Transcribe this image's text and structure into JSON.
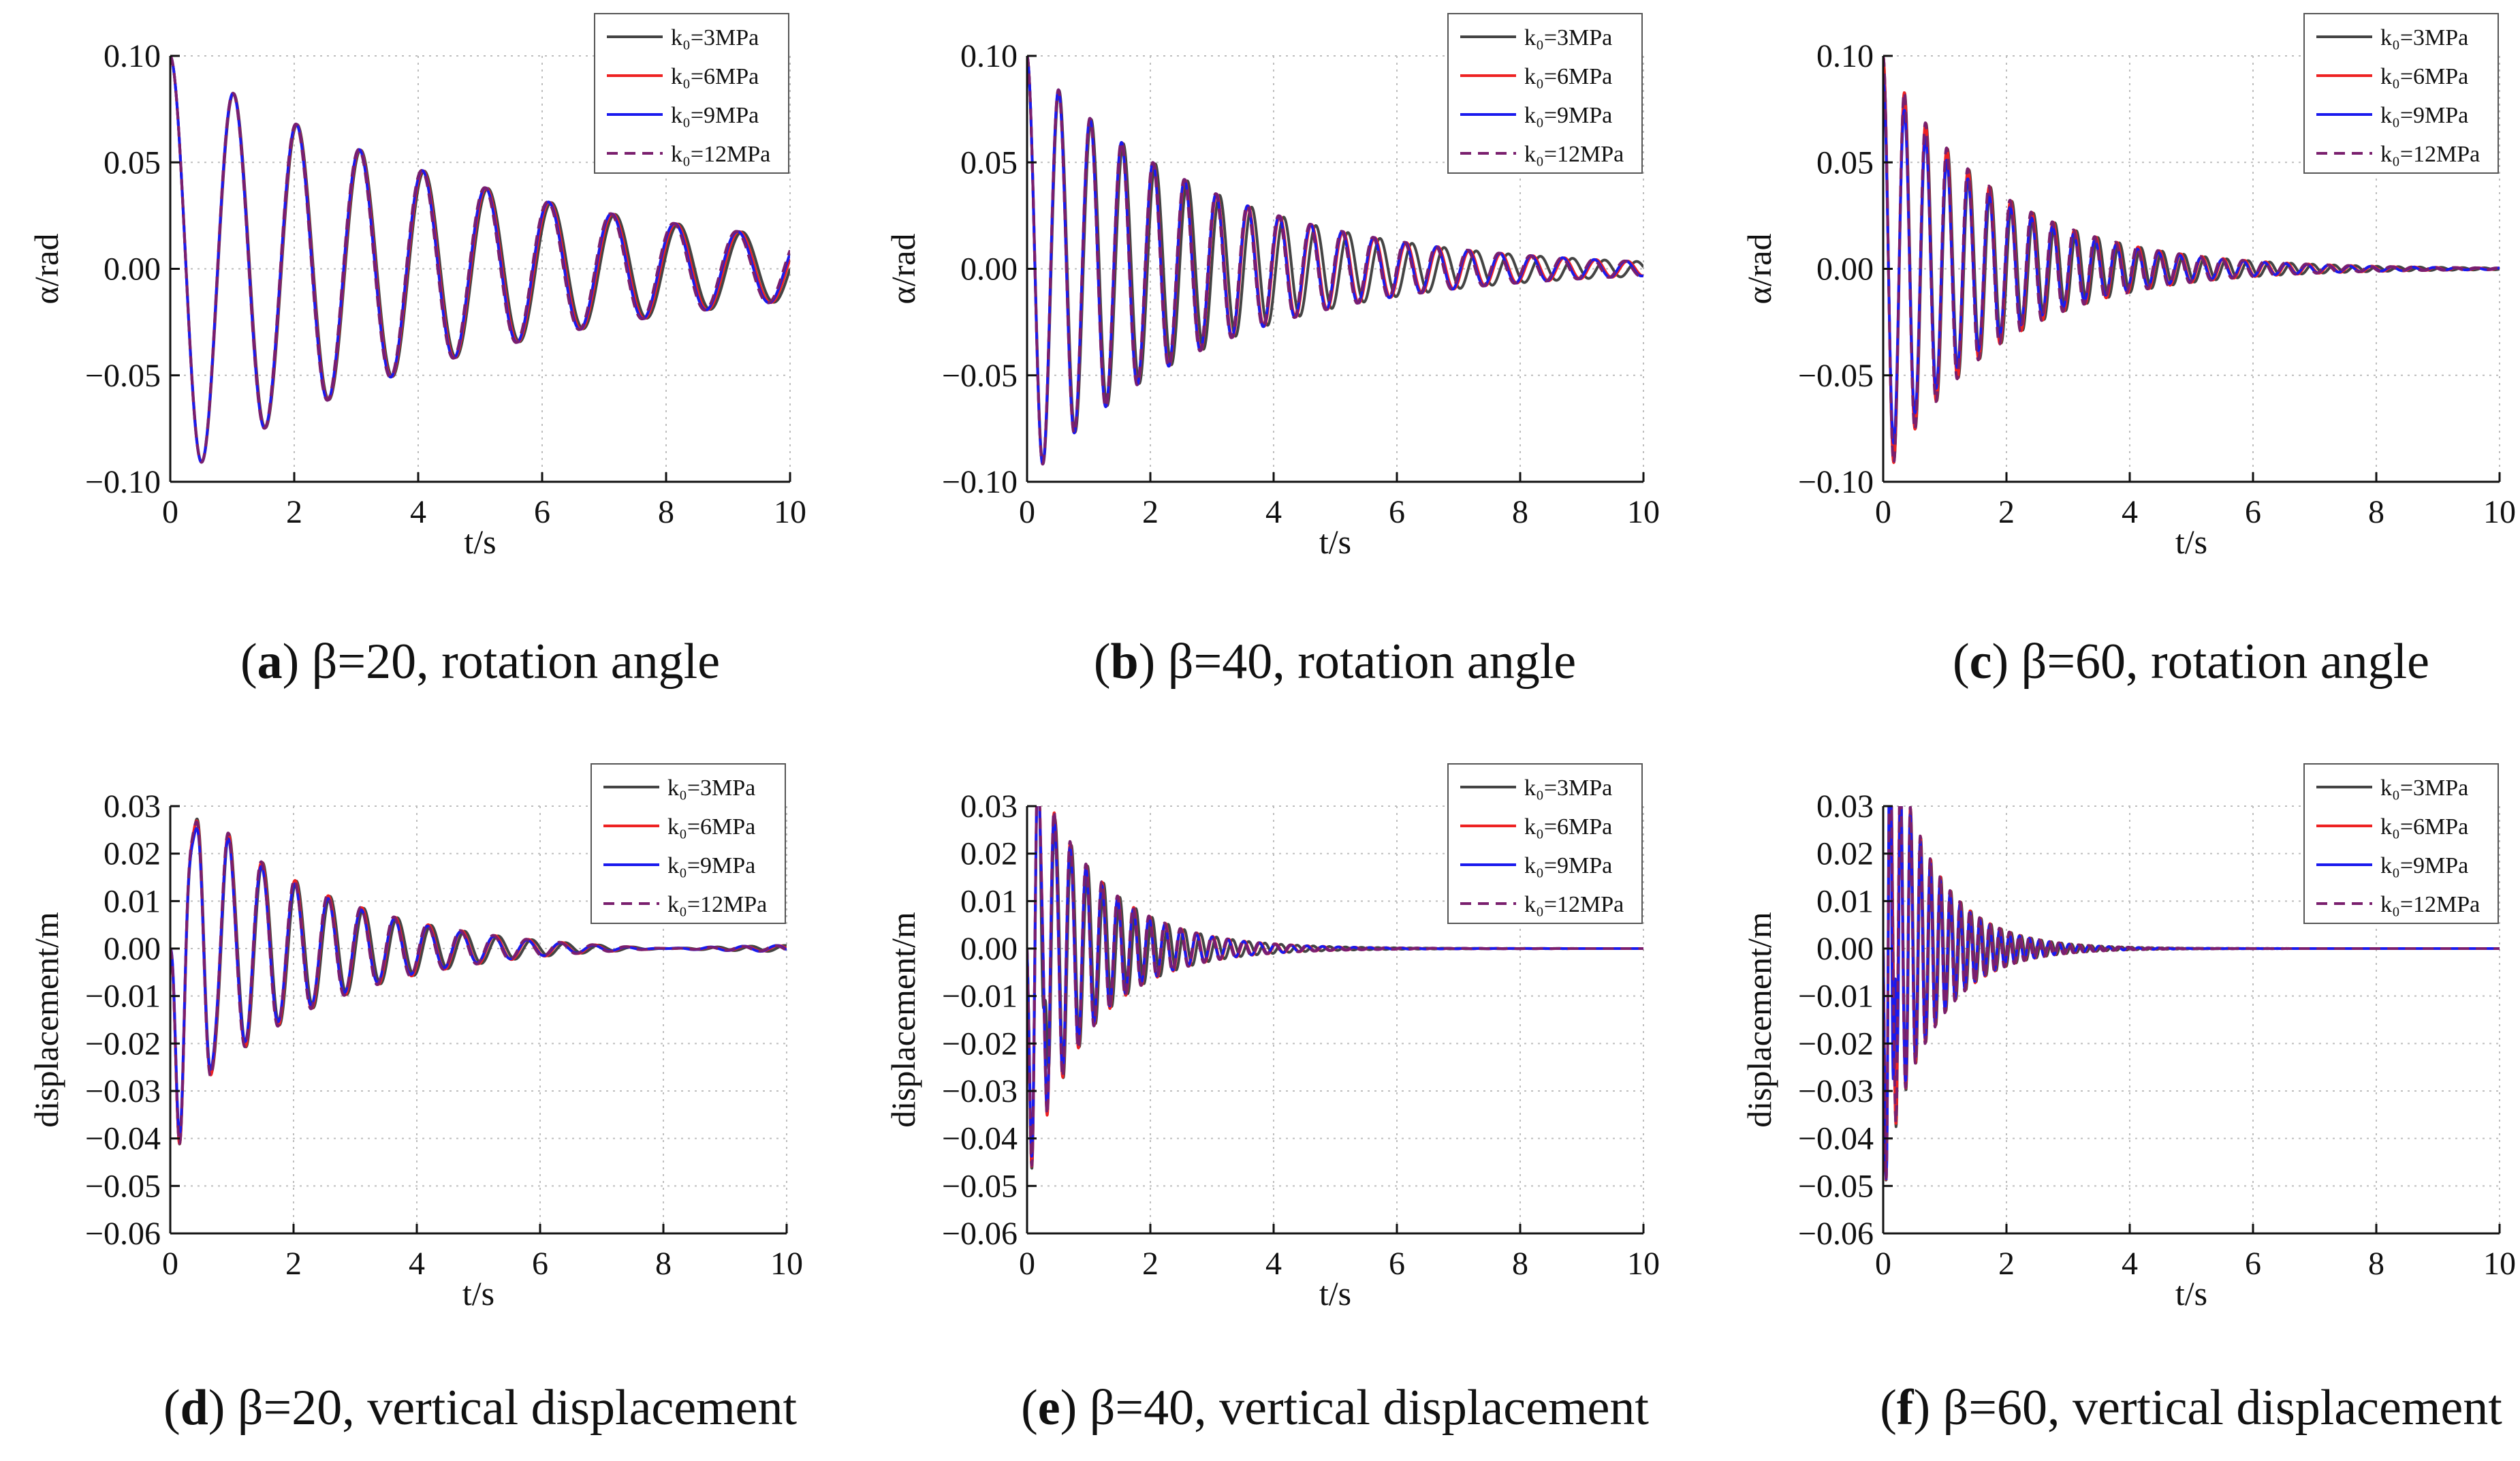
{
  "chart_data": [
    {
      "type": "line",
      "panel_label": "a",
      "caption": "β=20, rotation angle",
      "xlabel": "t/s",
      "ylabel": "α/rad",
      "xlim": [
        0,
        10
      ],
      "ylim": [
        -0.1,
        0.1
      ],
      "xticks": [
        "0",
        "2",
        "4",
        "6",
        "8",
        "10"
      ],
      "yticks": [
        "0.10",
        "0.05",
        "0.00",
        "−0.05",
        "−0.10"
      ],
      "grid": "dotted",
      "legend_position": "top-right",
      "signal": {
        "kind": "decay",
        "amplitude": 0.1,
        "frequency_hz": 0.98,
        "damping": 0.19
      },
      "series": [
        {
          "name": "k₀=3MPa",
          "color": "#444444",
          "dash": "solid",
          "amp_factor": 1.0,
          "freq_factor": 0.995
        },
        {
          "name": "k₀=6MPa",
          "color": "#ee2222",
          "dash": "solid",
          "amp_factor": 1.0,
          "freq_factor": 1.0
        },
        {
          "name": "k₀=9MPa",
          "color": "#1a1aee",
          "dash": "solid",
          "amp_factor": 1.0,
          "freq_factor": 1.003
        },
        {
          "name": "k₀=12MPa",
          "color": "#7a1f6e",
          "dash": "dashed",
          "amp_factor": 1.0,
          "freq_factor": 1.005
        }
      ]
    },
    {
      "type": "line",
      "panel_label": "b",
      "caption": "β=40, rotation angle",
      "xlabel": "t/s",
      "ylabel": "α/rad",
      "xlim": [
        0,
        10
      ],
      "ylim": [
        -0.1,
        0.1
      ],
      "xticks": [
        "0",
        "2",
        "4",
        "6",
        "8",
        "10"
      ],
      "yticks": [
        "0.10",
        "0.05",
        "0.00",
        "−0.05",
        "−0.10"
      ],
      "grid": "dotted",
      "legend_position": "top-right",
      "signal": {
        "kind": "decay",
        "amplitude": 0.1,
        "frequency_hz": 1.95,
        "damping": 0.34
      },
      "series": [
        {
          "name": "k₀=3MPa",
          "color": "#444444",
          "dash": "solid",
          "amp_factor": 1.0,
          "freq_factor": 0.985
        },
        {
          "name": "k₀=6MPa",
          "color": "#ee2222",
          "dash": "solid",
          "amp_factor": 1.0,
          "freq_factor": 1.0
        },
        {
          "name": "k₀=9MPa",
          "color": "#1a1aee",
          "dash": "solid",
          "amp_factor": 1.0,
          "freq_factor": 1.003
        },
        {
          "name": "k₀=12MPa",
          "color": "#7a1f6e",
          "dash": "dashed",
          "amp_factor": 1.0,
          "freq_factor": 1.005
        }
      ]
    },
    {
      "type": "line",
      "panel_label": "c",
      "caption": "β=60, rotation angle",
      "xlabel": "t/s",
      "ylabel": "α/rad",
      "xlim": [
        0,
        10
      ],
      "ylim": [
        -0.1,
        0.1
      ],
      "xticks": [
        "0",
        "2",
        "4",
        "6",
        "8",
        "10"
      ],
      "yticks": [
        "0.10",
        "0.05",
        "0.00",
        "−0.05",
        "−0.10"
      ],
      "grid": "dotted",
      "legend_position": "top-right",
      "signal": {
        "kind": "decay",
        "amplitude": 0.1,
        "frequency_hz": 2.9,
        "damping": 0.55
      },
      "series": [
        {
          "name": "k₀=3MPa",
          "color": "#444444",
          "dash": "solid",
          "amp_factor": 1.0,
          "freq_factor": 0.99
        },
        {
          "name": "k₀=6MPa",
          "color": "#ee2222",
          "dash": "solid",
          "amp_factor": 1.0,
          "freq_factor": 1.0
        },
        {
          "name": "k₀=9MPa",
          "color": "#1a1aee",
          "dash": "solid",
          "amp_factor": 0.9,
          "freq_factor": 1.003
        },
        {
          "name": "k₀=12MPa",
          "color": "#7a1f6e",
          "dash": "dashed",
          "amp_factor": 1.0,
          "freq_factor": 1.005
        }
      ]
    },
    {
      "type": "line",
      "panel_label": "d",
      "caption": "β=20, vertical displacement",
      "xlabel": "t/s",
      "ylabel": "displacement/m",
      "xlim": [
        0,
        10
      ],
      "ylim": [
        -0.06,
        0.03
      ],
      "xticks": [
        "0",
        "2",
        "4",
        "6",
        "8",
        "10"
      ],
      "yticks": [
        "0.03",
        "0.02",
        "0.01",
        "0.00",
        "−0.01",
        "−0.02",
        "−0.03",
        "−0.04",
        "−0.05",
        "−0.06"
      ],
      "grid": "dotted",
      "legend_position": "top-right",
      "signal": {
        "kind": "disp",
        "amplitude": 0.036,
        "frequency_hz": 1.85,
        "damping": 0.42,
        "transient_amp": 0.014,
        "transient_freq_hz": 4.5,
        "transient_damping": 3.0,
        "floor": 0.0012
      },
      "series": [
        {
          "name": "k₀=3MPa",
          "color": "#444444",
          "dash": "solid",
          "amp_factor": 1.0,
          "freq_factor": 0.99,
          "spike_amp": 0.0
        },
        {
          "name": "k₀=6MPa",
          "color": "#ee2222",
          "dash": "solid",
          "amp_factor": 1.0,
          "freq_factor": 1.0,
          "spike_amp": 0.0
        },
        {
          "name": "k₀=9MPa",
          "color": "#1a1aee",
          "dash": "solid",
          "amp_factor": 0.95,
          "freq_factor": 1.003,
          "spike_amp": 0.0
        },
        {
          "name": "k₀=12MPa",
          "color": "#7a1f6e",
          "dash": "dashed",
          "amp_factor": 1.0,
          "freq_factor": 1.005,
          "spike_amp": 0.0
        }
      ]
    },
    {
      "type": "line",
      "panel_label": "e",
      "caption": "β=40, vertical displacement",
      "xlabel": "t/s",
      "ylabel": "displacement/m",
      "xlim": [
        0,
        10
      ],
      "ylim": [
        -0.06,
        0.03
      ],
      "xticks": [
        "0",
        "2",
        "4",
        "6",
        "8",
        "10"
      ],
      "yticks": [
        "0.03",
        "0.02",
        "0.01",
        "0.00",
        "−0.01",
        "−0.02",
        "−0.03",
        "−0.04",
        "−0.05",
        "−0.06"
      ],
      "grid": "dotted",
      "legend_position": "top-right",
      "signal": {
        "kind": "disp",
        "amplitude": 0.045,
        "frequency_hz": 3.9,
        "damping": 0.95,
        "transient_amp": 0.012,
        "transient_freq_hz": 8.0,
        "transient_damping": 3.5,
        "floor": 0.0
      },
      "series": [
        {
          "name": "k₀=3MPa",
          "color": "#444444",
          "dash": "solid",
          "amp_factor": 1.0,
          "freq_factor": 0.98,
          "spike_amp": 0.022
        },
        {
          "name": "k₀=6MPa",
          "color": "#ee2222",
          "dash": "solid",
          "amp_factor": 1.0,
          "freq_factor": 1.0,
          "spike_amp": 0.0
        },
        {
          "name": "k₀=9MPa",
          "color": "#1a1aee",
          "dash": "solid",
          "amp_factor": 0.95,
          "freq_factor": 1.003,
          "spike_amp": 0.0
        },
        {
          "name": "k₀=12MPa",
          "color": "#7a1f6e",
          "dash": "dashed",
          "amp_factor": 1.0,
          "freq_factor": 1.005,
          "spike_amp": 0.0
        }
      ]
    },
    {
      "type": "line",
      "panel_label": "f",
      "caption": "β=60, vertical displacement",
      "xlabel": "t/s",
      "ylabel": "displacement/m",
      "xlim": [
        0,
        10
      ],
      "ylim": [
        -0.06,
        0.03
      ],
      "xticks": [
        "0",
        "2",
        "4",
        "6",
        "8",
        "10"
      ],
      "yticks": [
        "0.03",
        "0.02",
        "0.01",
        "0.00",
        "−0.01",
        "−0.02",
        "−0.03",
        "−0.04",
        "−0.05",
        "−0.06"
      ],
      "grid": "dotted",
      "legend_position": "top-right",
      "signal": {
        "kind": "disp",
        "amplitude": 0.05,
        "frequency_hz": 6.2,
        "damping": 1.3,
        "transient_amp": 0.01,
        "transient_freq_hz": 12.0,
        "transient_damping": 4.0,
        "floor": 0.0
      },
      "series": [
        {
          "name": "k₀=3MPa",
          "color": "#444444",
          "dash": "solid",
          "amp_factor": 1.0,
          "freq_factor": 0.99,
          "spike_amp": 0.0
        },
        {
          "name": "k₀=6MPa",
          "color": "#ee2222",
          "dash": "solid",
          "amp_factor": 1.0,
          "freq_factor": 1.0,
          "spike_amp": 0.0
        },
        {
          "name": "k₀=9MPa",
          "color": "#1a1aee",
          "dash": "solid",
          "amp_factor": 0.95,
          "freq_factor": 1.003,
          "spike_amp": 0.03
        },
        {
          "name": "k₀=12MPa",
          "color": "#7a1f6e",
          "dash": "dashed",
          "amp_factor": 1.0,
          "freq_factor": 1.005,
          "spike_amp": 0.0
        }
      ]
    }
  ]
}
